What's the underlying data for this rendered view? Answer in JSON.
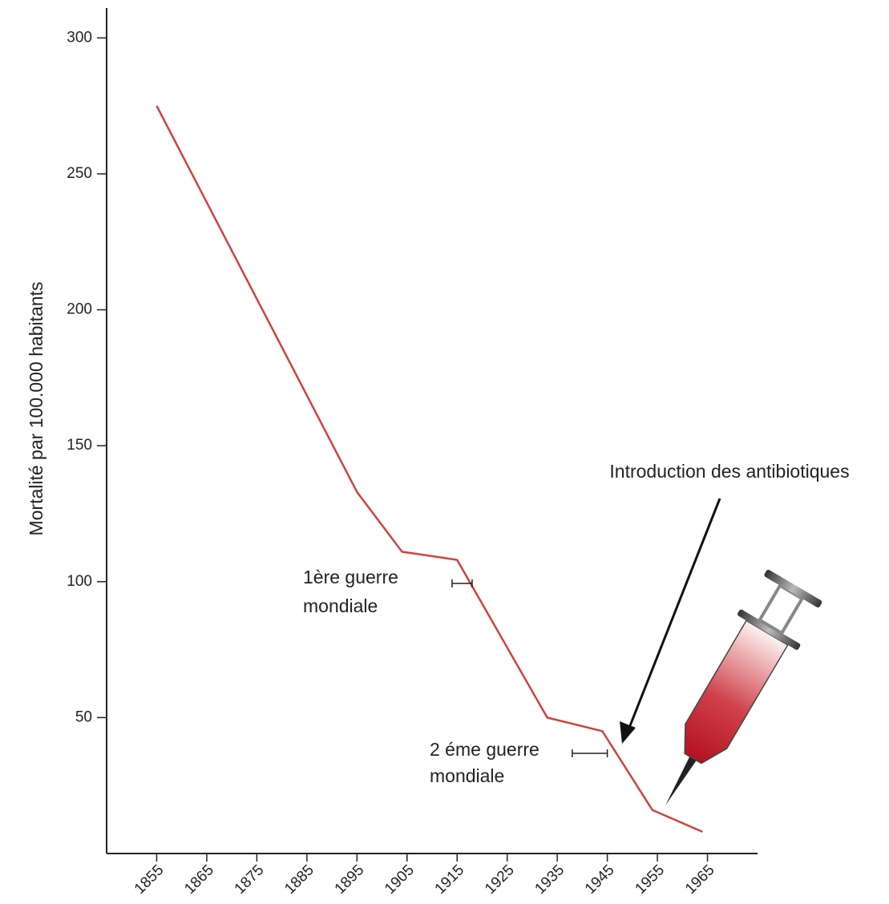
{
  "chart_data": {
    "type": "line",
    "ylabel": "Mortalité par 100.000 habitants",
    "x": [
      1855,
      1895,
      1904,
      1915,
      1933,
      1944,
      1954,
      1964
    ],
    "series": [
      {
        "color": "#d0423e",
        "values": [
          275,
          133,
          111,
          108,
          50,
          45,
          16,
          8
        ]
      }
    ],
    "xlim": [
      1845,
      1975
    ],
    "xticks": [
      1855,
      1865,
      1875,
      1885,
      1895,
      1905,
      1915,
      1925,
      1935,
      1945,
      1955,
      1965
    ],
    "ylim": [
      0,
      311
    ],
    "yticks": [
      50,
      100,
      150,
      200,
      250,
      300
    ],
    "annotations": [
      {
        "lines": [
          "1ère guerre",
          "mondiale"
        ],
        "period": [
          1914,
          1918
        ]
      },
      {
        "lines": [
          "2 éme guerre",
          "mondiale"
        ],
        "period": [
          1938,
          1945
        ]
      },
      {
        "lines": [
          "Introduction des antibiotiques"
        ]
      }
    ]
  }
}
